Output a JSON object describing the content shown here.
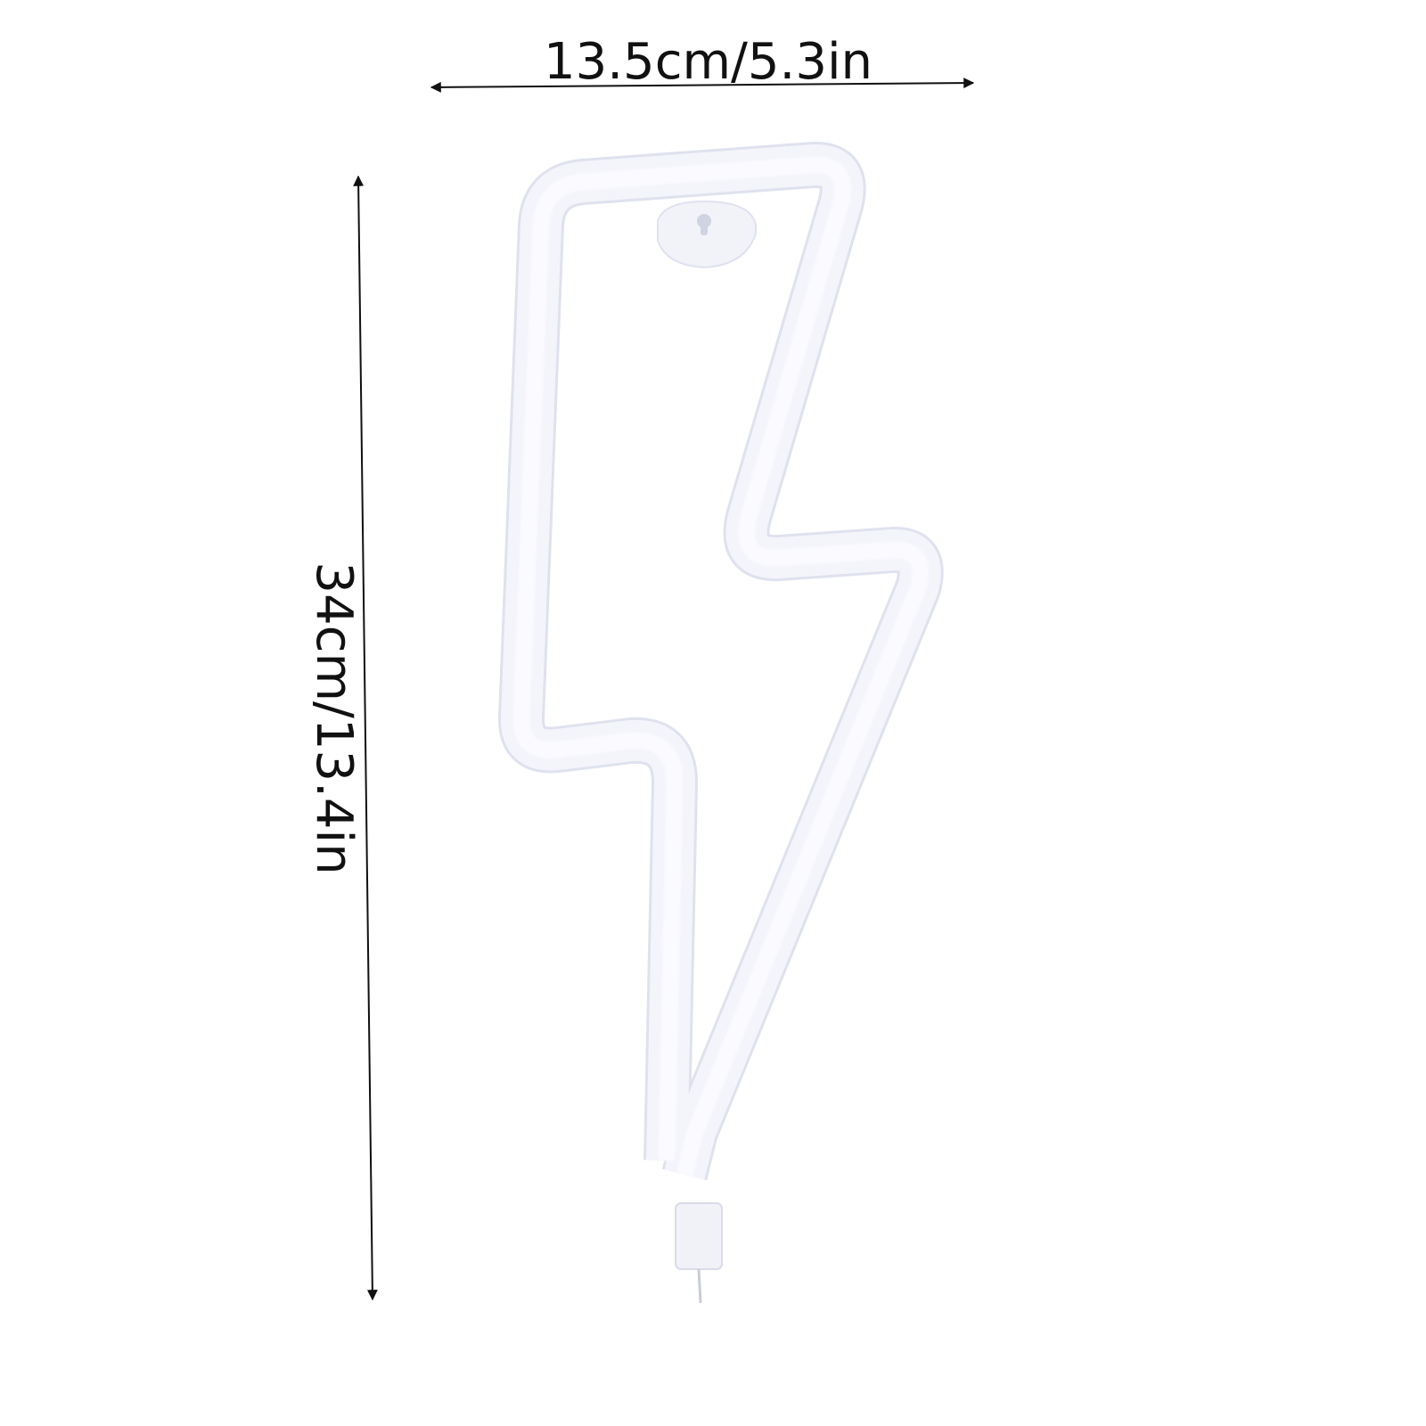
{
  "product": {
    "description_icon": "lightning-bolt-neon-sign",
    "tube_color": "#f4f5fb",
    "tube_edge_color": "#dfe2ee",
    "background_color": "#ffffff"
  },
  "dimensions": {
    "width_label": "13.5cm/5.3in",
    "height_label": "34cm/13.4in",
    "line_color": "#111111"
  }
}
